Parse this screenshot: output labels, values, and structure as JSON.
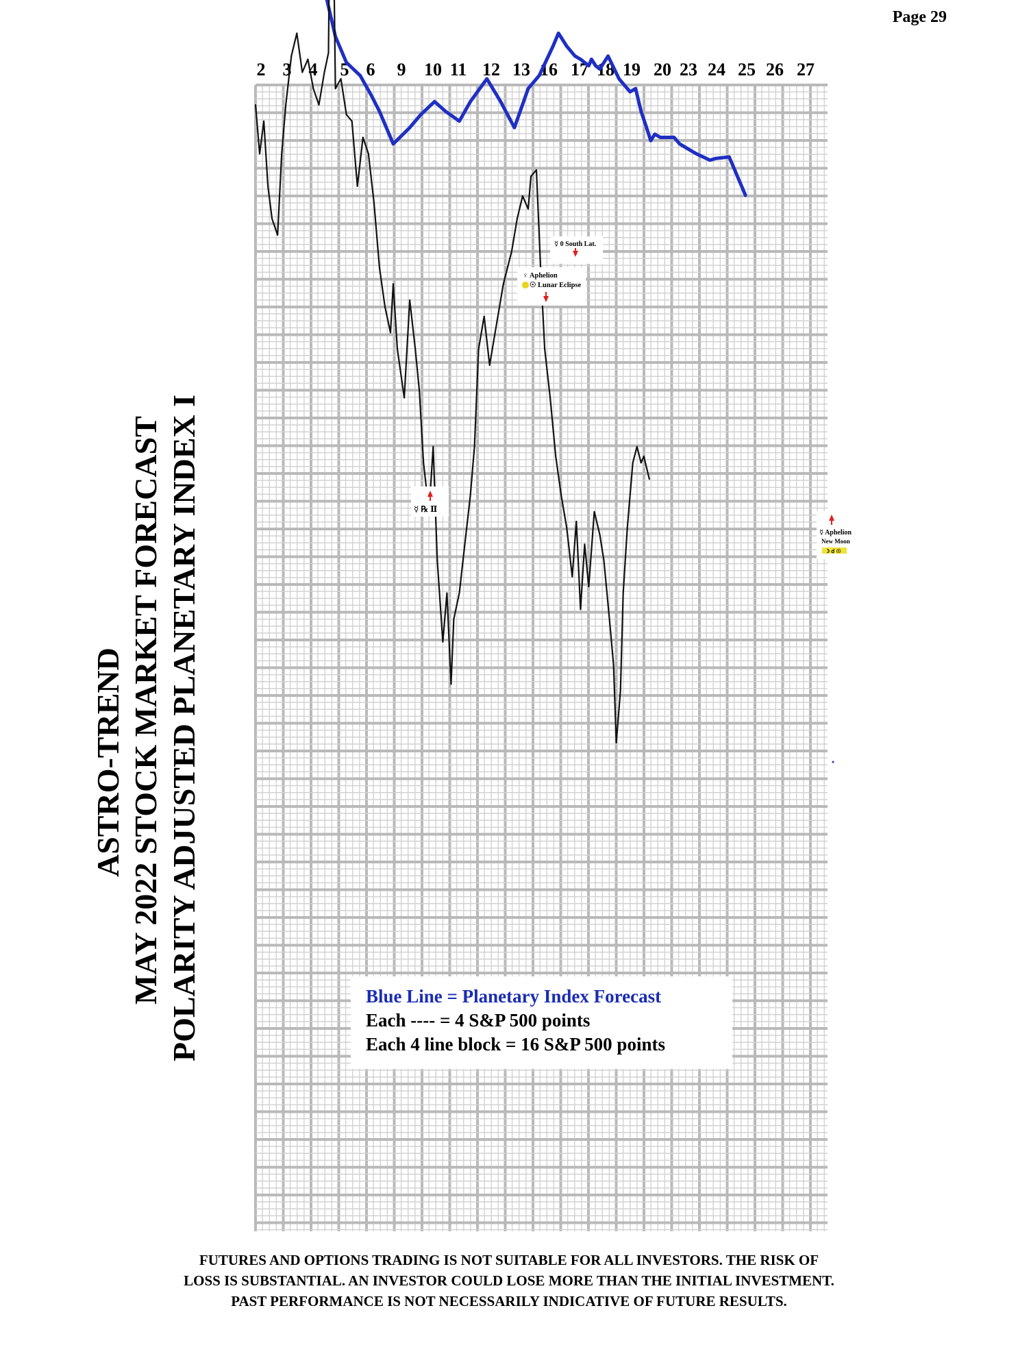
{
  "page_label": "Page  29",
  "title_lines": [
    "ASTRO-TREND",
    "MAY 2022  STOCK MARKET FORECAST",
    "POLARITY ADJUSTED PLANETARY INDEX I"
  ],
  "legend": {
    "line1": "Blue Line = Planetary Index Forecast",
    "line2": "Each ---- =   4 S&P 500 points",
    "line3": "Each 4 line block =  16  S&P 500 points"
  },
  "annotations": {
    "a1": "☿ 0 South Lat.",
    "a2_line1": "♀ Aphelion",
    "a2_line2": "☉ Lunar Eclipse",
    "a3": "☿ ℞ Ⅱ",
    "a4_line1": "☿ Aphelion",
    "a4_line2": "New Moon",
    "a4_line3": "☽ ☌ ☉"
  },
  "disclaimer": [
    "FUTURES AND OPTIONS TRADING IS NOT SUITABLE FOR ALL INVESTORS.  THE RISK OF",
    "LOSS IS SUBSTANTIAL.  AN INVESTOR COULD LOSE MORE THAN THE INITIAL INVESTMENT.",
    "PAST PERFORMANCE IS NOT NECESSARILY INDICATIVE OF FUTURE RESULTS."
  ],
  "colors": {
    "forecast_line": "#1f2fc4",
    "price": "#111111",
    "grid_major": "#b9b9b9",
    "grid_minor": "#d2d2d2",
    "background": "#ffffff"
  },
  "chart_data": {
    "type": "line",
    "title": "",
    "xlabel": "",
    "ylabel": "",
    "grid": true,
    "x": [
      "2",
      "3",
      "4",
      "5",
      "6",
      "9",
      "10",
      "11",
      "12",
      "13",
      "16",
      "17",
      "18",
      "19",
      "20",
      "23",
      "24",
      "25",
      "26",
      "27"
    ],
    "series": [
      {
        "name": "Blue Line = Planetary Index Forecast",
        "color": "#1f2fc4",
        "points": [
          [
            0.0,
            1.0
          ],
          [
            0.25,
            0.99
          ],
          [
            0.9,
            0.84
          ],
          [
            1.4,
            0.76
          ],
          [
            1.8,
            0.74
          ],
          [
            2.0,
            0.65
          ],
          [
            2.3,
            0.62
          ],
          [
            2.6,
            0.52
          ],
          [
            2.9,
            0.41
          ],
          [
            3.3,
            0.33
          ],
          [
            3.8,
            0.29
          ],
          [
            4.2,
            0.23
          ],
          [
            4.5,
            0.18
          ],
          [
            5.0,
            0.08
          ],
          [
            5.6,
            0.13
          ],
          [
            6.0,
            0.17
          ],
          [
            6.5,
            0.21
          ],
          [
            6.9,
            0.18
          ],
          [
            7.4,
            0.15
          ],
          [
            7.8,
            0.21
          ],
          [
            8.4,
            0.28
          ],
          [
            8.9,
            0.21
          ],
          [
            9.4,
            0.13
          ],
          [
            9.9,
            0.25
          ],
          [
            10.3,
            0.29
          ],
          [
            10.8,
            0.38
          ],
          [
            11.0,
            0.42
          ],
          [
            11.3,
            0.38
          ],
          [
            11.6,
            0.35
          ],
          [
            11.8,
            0.34
          ],
          [
            12.1,
            0.32
          ],
          [
            12.2,
            0.34
          ],
          [
            12.35,
            0.32
          ],
          [
            12.5,
            0.31
          ],
          [
            12.8,
            0.35
          ],
          [
            13.2,
            0.28
          ],
          [
            13.6,
            0.24
          ],
          [
            13.8,
            0.25
          ],
          [
            14.0,
            0.18
          ],
          [
            14.2,
            0.13
          ],
          [
            14.35,
            0.09
          ],
          [
            14.5,
            0.11
          ],
          [
            14.7,
            0.1
          ],
          [
            15.2,
            0.1
          ],
          [
            15.4,
            0.08
          ],
          [
            15.6,
            0.07
          ],
          [
            16.0,
            0.05
          ],
          [
            16.5,
            0.03
          ],
          [
            16.7,
            0.035
          ],
          [
            17.2,
            0.04
          ],
          [
            17.8,
            -0.08
          ]
        ]
      },
      {
        "name": "",
        "color": "#111111",
        "points": [
          [
            0.0,
            0.2
          ],
          [
            0.15,
            0.05
          ],
          [
            0.3,
            0.15
          ],
          [
            0.45,
            -0.05
          ],
          [
            0.6,
            -0.15
          ],
          [
            0.8,
            -0.2
          ],
          [
            0.95,
            0.05
          ],
          [
            1.1,
            0.2
          ],
          [
            1.3,
            0.35
          ],
          [
            1.5,
            0.42
          ],
          [
            1.7,
            0.3
          ],
          [
            1.9,
            0.34
          ],
          [
            2.1,
            0.25
          ],
          [
            2.3,
            0.2
          ],
          [
            2.5,
            0.3
          ],
          [
            2.65,
            0.36
          ],
          [
            2.75,
            1.27
          ],
          [
            2.9,
            0.25
          ],
          [
            3.1,
            0.28
          ],
          [
            3.3,
            0.17
          ],
          [
            3.5,
            0.15
          ],
          [
            3.7,
            -0.05
          ],
          [
            3.9,
            0.1
          ],
          [
            4.1,
            0.05
          ],
          [
            4.3,
            -0.1
          ],
          [
            4.5,
            -0.3
          ],
          [
            4.7,
            -0.42
          ],
          [
            4.9,
            -0.5
          ],
          [
            5.0,
            -0.35
          ],
          [
            5.15,
            -0.55
          ],
          [
            5.4,
            -0.7
          ],
          [
            5.6,
            -0.4
          ],
          [
            5.8,
            -0.55
          ],
          [
            5.95,
            -0.68
          ],
          [
            6.1,
            -0.9
          ],
          [
            6.3,
            -1.05
          ],
          [
            6.45,
            -0.85
          ],
          [
            6.6,
            -1.2
          ],
          [
            6.8,
            -1.45
          ],
          [
            6.95,
            -1.3
          ],
          [
            7.1,
            -1.58
          ],
          [
            7.2,
            -1.38
          ],
          [
            7.4,
            -1.3
          ],
          [
            7.6,
            -1.15
          ],
          [
            7.8,
            -1.0
          ],
          [
            7.95,
            -0.85
          ],
          [
            8.1,
            -0.55
          ],
          [
            8.3,
            -0.45
          ],
          [
            8.5,
            -0.6
          ],
          [
            8.7,
            -0.5
          ],
          [
            9.0,
            -0.35
          ],
          [
            9.3,
            -0.25
          ],
          [
            9.5,
            -0.15
          ],
          [
            9.7,
            -0.08
          ],
          [
            9.9,
            -0.12
          ],
          [
            10.0,
            -0.02
          ],
          [
            10.2,
            0.0
          ],
          [
            10.35,
            -0.3
          ],
          [
            10.5,
            -0.55
          ],
          [
            10.7,
            -0.7
          ],
          [
            10.9,
            -0.88
          ],
          [
            11.1,
            -1.0
          ],
          [
            11.3,
            -1.1
          ],
          [
            11.5,
            -1.25
          ],
          [
            11.65,
            -1.08
          ],
          [
            11.8,
            -1.35
          ],
          [
            11.95,
            -1.15
          ],
          [
            12.1,
            -1.28
          ],
          [
            12.3,
            -1.05
          ],
          [
            12.5,
            -1.12
          ],
          [
            12.65,
            -1.2
          ],
          [
            12.85,
            -1.38
          ],
          [
            13.0,
            -1.52
          ],
          [
            13.1,
            -1.76
          ],
          [
            13.25,
            -1.6
          ],
          [
            13.35,
            -1.3
          ],
          [
            13.5,
            -1.1
          ],
          [
            13.7,
            -0.9
          ],
          [
            13.85,
            -0.85
          ],
          [
            14.0,
            -0.9
          ],
          [
            14.1,
            -0.88
          ],
          [
            14.3,
            -0.95
          ]
        ]
      }
    ]
  }
}
